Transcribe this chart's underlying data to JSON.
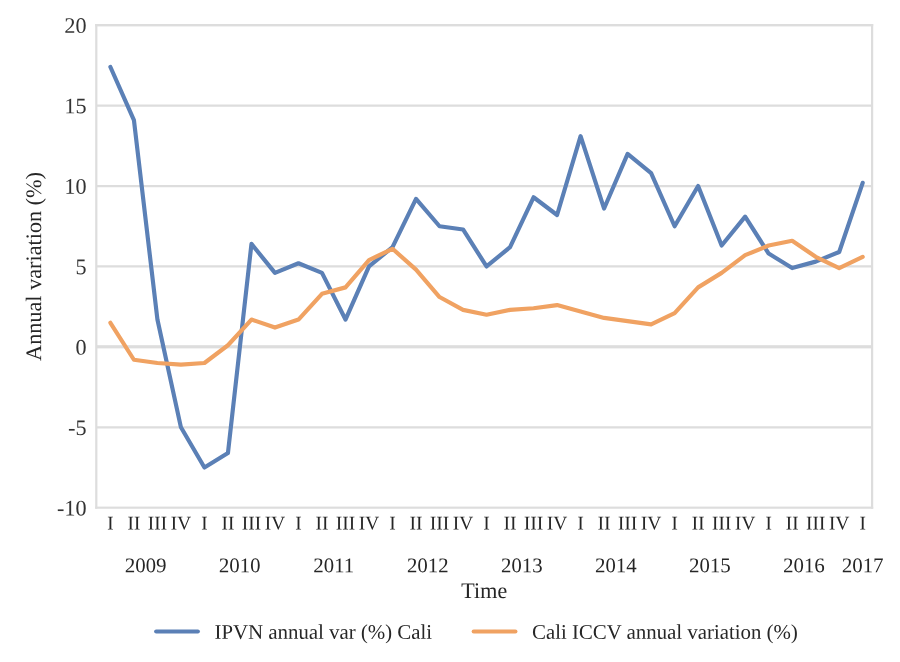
{
  "chart_data": {
    "type": "line",
    "xlabel": "Time",
    "ylabel": "Annual variation (%)",
    "categories": [
      "I",
      "II",
      "III",
      "IV",
      "I",
      "II",
      "III",
      "IV",
      "I",
      "II",
      "III",
      "IV",
      "I",
      "II",
      "III",
      "IV",
      "I",
      "II",
      "III",
      "IV",
      "I",
      "II",
      "III",
      "IV",
      "I",
      "II",
      "III",
      "IV",
      "I",
      "II",
      "III",
      "IV",
      "I"
    ],
    "annotations": [
      "2009",
      "2010",
      "2011",
      "2012",
      "2013",
      "2014",
      "2015",
      "2016",
      "2017"
    ],
    "series": [
      {
        "name": "IPVN annual var (%) Cali",
        "color": "#5b80b6",
        "values": [
          17.4,
          14.1,
          1.7,
          -5.0,
          -7.5,
          -6.6,
          6.4,
          4.6,
          5.2,
          4.6,
          1.7,
          5.0,
          6.2,
          9.2,
          7.5,
          7.3,
          5.0,
          6.2,
          9.3,
          8.2,
          13.1,
          8.6,
          12.0,
          10.8,
          7.5,
          10.0,
          6.3,
          8.1,
          5.8,
          4.9,
          5.3,
          5.9,
          10.2
        ]
      },
      {
        "name": "Cali ICCV annual variation (%)",
        "color": "#f0a262",
        "values": [
          1.5,
          -0.8,
          -1.0,
          -1.1,
          -1.0,
          0.1,
          1.7,
          1.2,
          1.7,
          3.3,
          3.7,
          5.4,
          6.1,
          4.8,
          3.1,
          2.3,
          2.0,
          2.3,
          2.4,
          2.6,
          2.2,
          1.8,
          1.6,
          1.4,
          2.1,
          3.7,
          4.6,
          5.7,
          6.3,
          6.6,
          5.6,
          4.9,
          5.6
        ]
      }
    ],
    "ylim": [
      -10,
      20
    ],
    "yticks": [
      -10,
      -5,
      0,
      5,
      10,
      15,
      20
    ],
    "grid": "y",
    "legend": "bottom",
    "marker": "none",
    "line_style": "solid"
  }
}
